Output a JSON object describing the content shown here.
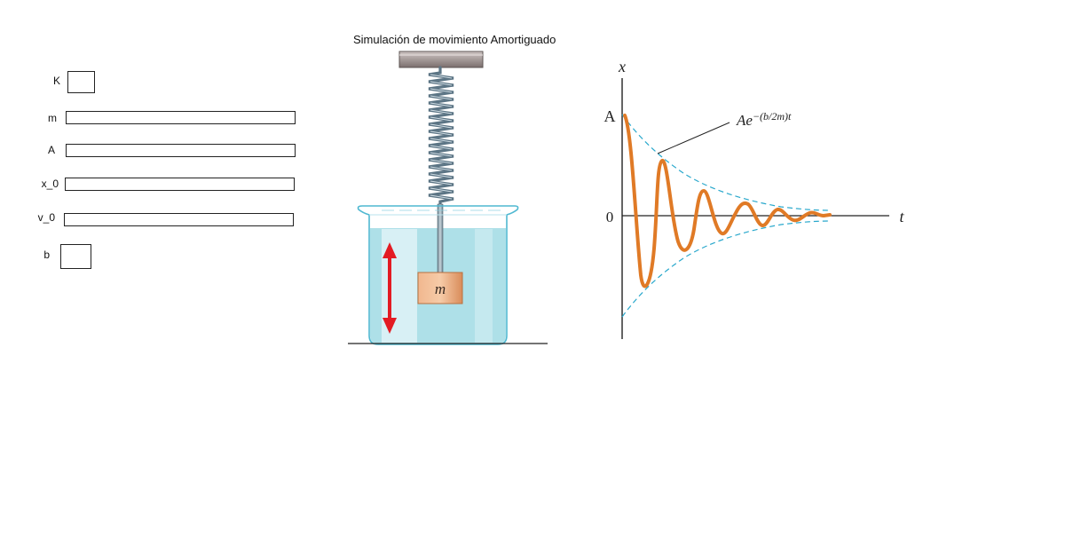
{
  "title": "Simulación de movimiento Amortiguado",
  "params": [
    {
      "label": "K",
      "value": ""
    },
    {
      "label": "m",
      "value": ""
    },
    {
      "label": "A",
      "value": ""
    },
    {
      "label": "x_0",
      "value": ""
    },
    {
      "label": "v_0",
      "value": ""
    },
    {
      "label": "b",
      "value": ""
    }
  ],
  "apparatus": {
    "mass_label": "m",
    "arrow_color": "#e31b23",
    "water_color": "#aee0e8",
    "block_color": "#e8a87a"
  },
  "graph": {
    "x_axis_label": "x",
    "t_axis_label": "t",
    "amplitude_label": "A",
    "zero_label": "0",
    "envelope_label": "Ae",
    "envelope_exponent": "−(b/2m)t",
    "curve_color": "#e07a26",
    "envelope_color": "#29a8cc"
  }
}
